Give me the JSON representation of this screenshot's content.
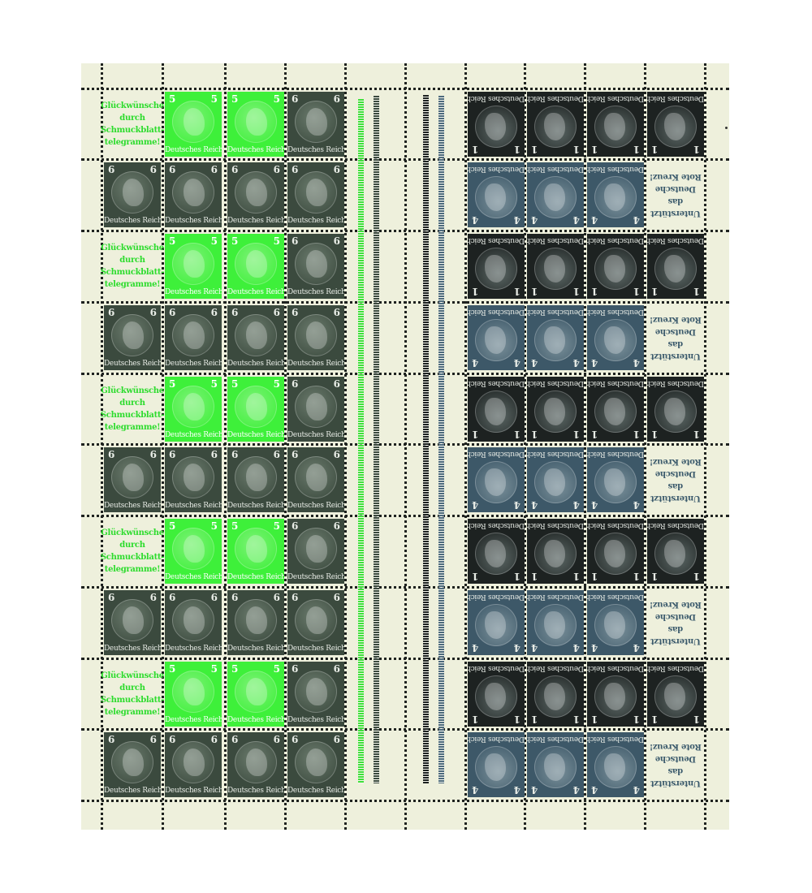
{
  "sheet": {
    "paper_color": "#eef0dc",
    "country_text": "Deutsches Reich",
    "labels": {
      "greeting": [
        "Glückwünsche",
        "durch",
        "Schmuckblatt-",
        "telegramme!"
      ],
      "redcross": [
        "Unterstützt",
        "das",
        "Deutsche",
        "Rote Kreuz!"
      ]
    },
    "stamp_types": {
      "green5": {
        "value": "5",
        "color": "#3ef03a",
        "medal": "#7cf276",
        "ink": "#ffffff"
      },
      "green6": {
        "value": "6",
        "color": "#3b4a3e",
        "medal": "#6a7a6c",
        "ink": "#e8ece6"
      },
      "black1": {
        "value": "1",
        "color": "#1d2221",
        "medal": "#5c6866",
        "ink": "#e8ece6"
      },
      "blue4": {
        "value": "4",
        "color": "#3d5868",
        "medal": "#7a909a",
        "ink": "#e8ece6"
      }
    },
    "label_colors": {
      "greeting": "#2edc2e",
      "redcross": "#3b5a6c"
    },
    "left_block": [
      [
        "greeting",
        "green5",
        "green5",
        "green6"
      ],
      [
        "green6",
        "green6",
        "green6",
        "green6"
      ],
      [
        "greeting",
        "green5",
        "green5",
        "green6"
      ],
      [
        "green6",
        "green6",
        "green6",
        "green6"
      ],
      [
        "greeting",
        "green5",
        "green5",
        "green6"
      ],
      [
        "green6",
        "green6",
        "green6",
        "green6"
      ],
      [
        "greeting",
        "green5",
        "green5",
        "green6"
      ],
      [
        "green6",
        "green6",
        "green6",
        "green6"
      ],
      [
        "greeting",
        "green5",
        "green5",
        "green6"
      ],
      [
        "green6",
        "green6",
        "green6",
        "green6"
      ]
    ],
    "right_block_inverted": true,
    "right_block": [
      [
        "black1",
        "black1",
        "black1",
        "black1"
      ],
      [
        "blue4",
        "blue4",
        "blue4",
        "redcross"
      ],
      [
        "black1",
        "black1",
        "black1",
        "black1"
      ],
      [
        "blue4",
        "blue4",
        "blue4",
        "redcross"
      ],
      [
        "black1",
        "black1",
        "black1",
        "black1"
      ],
      [
        "blue4",
        "blue4",
        "blue4",
        "redcross"
      ],
      [
        "black1",
        "black1",
        "black1",
        "black1"
      ],
      [
        "blue4",
        "blue4",
        "blue4",
        "redcross"
      ],
      [
        "black1",
        "black1",
        "black1",
        "black1"
      ],
      [
        "blue4",
        "blue4",
        "blue4",
        "redcross"
      ]
    ],
    "gutter_bar_colors": [
      "#3ee03a",
      "#3b4a3e",
      "#1d2221",
      "#4d6a7c"
    ]
  }
}
